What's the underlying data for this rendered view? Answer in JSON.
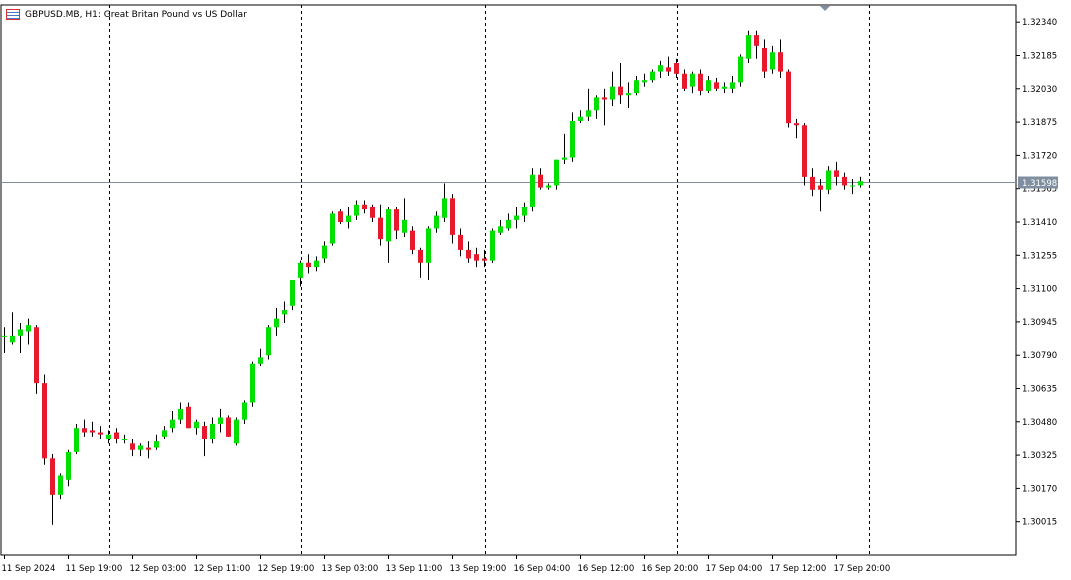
{
  "header": {
    "title": "GBPUSD.MB, H1:  Great Britan Pound vs US Dollar",
    "icon": "chart-window-icon"
  },
  "colors": {
    "background": "#ffffff",
    "frame": "#000000",
    "bull": "#00e000",
    "bear": "#e8192c",
    "wick": "#000000",
    "bid_line": "#7f8f9f",
    "price_badge": "#7f8f9f",
    "separator": "#000000"
  },
  "chart_data": {
    "type": "candlestick",
    "symbol": "GBPUSD.MB",
    "timeframe": "H1",
    "y_axis": {
      "range": [
        1.2986,
        1.3242
      ],
      "ticks": [
        "1.32340",
        "1.32185",
        "1.32030",
        "1.31875",
        "1.31720",
        "1.31565",
        "1.31410",
        "1.31255",
        "1.31100",
        "1.30945",
        "1.30790",
        "1.30635",
        "1.30480",
        "1.30325",
        "1.30170",
        "1.30015"
      ]
    },
    "current_price": "1.31598",
    "x_axis": {
      "labels": [
        "11 Sep 2024",
        "11 Sep 19:00",
        "12 Sep 03:00",
        "12 Sep 11:00",
        "12 Sep 19:00",
        "13 Sep 03:00",
        "13 Sep 11:00",
        "13 Sep 19:00",
        "16 Sep 04:00",
        "16 Sep 12:00",
        "16 Sep 20:00",
        "17 Sep 04:00",
        "17 Sep 12:00",
        "17 Sep 20:00"
      ],
      "label_every": 8
    },
    "period_separators_at_index": [
      13,
      37,
      60,
      84,
      108
    ],
    "grid": false,
    "candles": [
      {
        "o": 1.3088,
        "h": 1.3092,
        "l": 1.308,
        "c": 1.3088
      },
      {
        "o": 1.3085,
        "h": 1.3099,
        "l": 1.3084,
        "c": 1.3088
      },
      {
        "o": 1.3088,
        "h": 1.3094,
        "l": 1.308,
        "c": 1.3091
      },
      {
        "o": 1.309,
        "h": 1.3096,
        "l": 1.3084,
        "c": 1.3093
      },
      {
        "o": 1.3092,
        "h": 1.3093,
        "l": 1.3061,
        "c": 1.3066
      },
      {
        "o": 1.3066,
        "h": 1.307,
        "l": 1.3028,
        "c": 1.3031
      },
      {
        "o": 1.3031,
        "h": 1.3033,
        "l": 1.3,
        "c": 1.3014
      },
      {
        "o": 1.3014,
        "h": 1.3024,
        "l": 1.3012,
        "c": 1.3023
      },
      {
        "o": 1.3021,
        "h": 1.3035,
        "l": 1.3018,
        "c": 1.3034
      },
      {
        "o": 1.3034,
        "h": 1.3047,
        "l": 1.3033,
        "c": 1.3045
      },
      {
        "o": 1.3045,
        "h": 1.3049,
        "l": 1.3041,
        "c": 1.3043
      },
      {
        "o": 1.3044,
        "h": 1.3048,
        "l": 1.3041,
        "c": 1.3043
      },
      {
        "o": 1.3043,
        "h": 1.3046,
        "l": 1.304,
        "c": 1.3042
      },
      {
        "o": 1.304,
        "h": 1.3044,
        "l": 1.3038,
        "c": 1.3042
      },
      {
        "o": 1.3043,
        "h": 1.3045,
        "l": 1.3038,
        "c": 1.304
      },
      {
        "o": 1.304,
        "h": 1.3042,
        "l": 1.3038,
        "c": 1.304
      },
      {
        "o": 1.3038,
        "h": 1.304,
        "l": 1.3032,
        "c": 1.3035
      },
      {
        "o": 1.3035,
        "h": 1.3038,
        "l": 1.3032,
        "c": 1.3037
      },
      {
        "o": 1.3036,
        "h": 1.3039,
        "l": 1.3031,
        "c": 1.3035
      },
      {
        "o": 1.3036,
        "h": 1.3042,
        "l": 1.3035,
        "c": 1.3039
      },
      {
        "o": 1.3041,
        "h": 1.3046,
        "l": 1.304,
        "c": 1.3044
      },
      {
        "o": 1.3045,
        "h": 1.3053,
        "l": 1.3043,
        "c": 1.3049
      },
      {
        "o": 1.3049,
        "h": 1.3057,
        "l": 1.3047,
        "c": 1.3054
      },
      {
        "o": 1.3055,
        "h": 1.3057,
        "l": 1.3045,
        "c": 1.3045
      },
      {
        "o": 1.3045,
        "h": 1.3049,
        "l": 1.3042,
        "c": 1.3048
      },
      {
        "o": 1.3046,
        "h": 1.3048,
        "l": 1.3032,
        "c": 1.304
      },
      {
        "o": 1.304,
        "h": 1.305,
        "l": 1.3038,
        "c": 1.3047
      },
      {
        "o": 1.3047,
        "h": 1.3054,
        "l": 1.3043,
        "c": 1.305
      },
      {
        "o": 1.305,
        "h": 1.3051,
        "l": 1.3041,
        "c": 1.3041
      },
      {
        "o": 1.3038,
        "h": 1.305,
        "l": 1.3037,
        "c": 1.3049
      },
      {
        "o": 1.3049,
        "h": 1.3058,
        "l": 1.3047,
        "c": 1.3057
      },
      {
        "o": 1.3057,
        "h": 1.3076,
        "l": 1.3055,
        "c": 1.3075
      },
      {
        "o": 1.3075,
        "h": 1.3082,
        "l": 1.3074,
        "c": 1.3078
      },
      {
        "o": 1.3079,
        "h": 1.3093,
        "l": 1.3077,
        "c": 1.3092
      },
      {
        "o": 1.3092,
        "h": 1.3101,
        "l": 1.3088,
        "c": 1.3096
      },
      {
        "o": 1.3098,
        "h": 1.3104,
        "l": 1.3094,
        "c": 1.31
      },
      {
        "o": 1.3102,
        "h": 1.3114,
        "l": 1.31,
        "c": 1.3114
      },
      {
        "o": 1.3115,
        "h": 1.3123,
        "l": 1.3111,
        "c": 1.3122
      },
      {
        "o": 1.3122,
        "h": 1.3126,
        "l": 1.3117,
        "c": 1.312
      },
      {
        "o": 1.312,
        "h": 1.3125,
        "l": 1.3118,
        "c": 1.3123
      },
      {
        "o": 1.3124,
        "h": 1.3132,
        "l": 1.3122,
        "c": 1.313
      },
      {
        "o": 1.3131,
        "h": 1.3146,
        "l": 1.313,
        "c": 1.3145
      },
      {
        "o": 1.3146,
        "h": 1.3147,
        "l": 1.314,
        "c": 1.3141
      },
      {
        "o": 1.3141,
        "h": 1.3148,
        "l": 1.3138,
        "c": 1.3144
      },
      {
        "o": 1.3144,
        "h": 1.3151,
        "l": 1.3142,
        "c": 1.3149
      },
      {
        "o": 1.3149,
        "h": 1.3151,
        "l": 1.3145,
        "c": 1.3147
      },
      {
        "o": 1.3148,
        "h": 1.3149,
        "l": 1.3141,
        "c": 1.3143
      },
      {
        "o": 1.3143,
        "h": 1.3149,
        "l": 1.313,
        "c": 1.3133
      },
      {
        "o": 1.3132,
        "h": 1.3148,
        "l": 1.3122,
        "c": 1.3147
      },
      {
        "o": 1.3147,
        "h": 1.3148,
        "l": 1.3133,
        "c": 1.3137
      },
      {
        "o": 1.3136,
        "h": 1.3152,
        "l": 1.3134,
        "c": 1.3142
      },
      {
        "o": 1.3137,
        "h": 1.3139,
        "l": 1.3126,
        "c": 1.3128
      },
      {
        "o": 1.3128,
        "h": 1.3129,
        "l": 1.3115,
        "c": 1.3122
      },
      {
        "o": 1.3122,
        "h": 1.3139,
        "l": 1.3114,
        "c": 1.3138
      },
      {
        "o": 1.3138,
        "h": 1.3146,
        "l": 1.3136,
        "c": 1.3144
      },
      {
        "o": 1.3143,
        "h": 1.3159,
        "l": 1.3141,
        "c": 1.3152
      },
      {
        "o": 1.3152,
        "h": 1.3154,
        "l": 1.3131,
        "c": 1.3135
      },
      {
        "o": 1.3135,
        "h": 1.3138,
        "l": 1.3125,
        "c": 1.3128
      },
      {
        "o": 1.3128,
        "h": 1.3132,
        "l": 1.3122,
        "c": 1.3124
      },
      {
        "o": 1.3126,
        "h": 1.3129,
        "l": 1.312,
        "c": 1.3123
      },
      {
        "o": 1.3124,
        "h": 1.3128,
        "l": 1.312,
        "c": 1.3123
      },
      {
        "o": 1.3123,
        "h": 1.3138,
        "l": 1.3122,
        "c": 1.3137
      },
      {
        "o": 1.3136,
        "h": 1.3142,
        "l": 1.3135,
        "c": 1.3139
      },
      {
        "o": 1.3138,
        "h": 1.3145,
        "l": 1.3137,
        "c": 1.3142
      },
      {
        "o": 1.3142,
        "h": 1.3148,
        "l": 1.3138,
        "c": 1.3144
      },
      {
        "o": 1.3144,
        "h": 1.315,
        "l": 1.3141,
        "c": 1.3148
      },
      {
        "o": 1.3148,
        "h": 1.3166,
        "l": 1.3146,
        "c": 1.3163
      },
      {
        "o": 1.3163,
        "h": 1.3166,
        "l": 1.3156,
        "c": 1.3157
      },
      {
        "o": 1.3157,
        "h": 1.3159,
        "l": 1.3156,
        "c": 1.3158
      },
      {
        "o": 1.3158,
        "h": 1.317,
        "l": 1.3156,
        "c": 1.317
      },
      {
        "o": 1.317,
        "h": 1.3182,
        "l": 1.3168,
        "c": 1.3171
      },
      {
        "o": 1.3171,
        "h": 1.3192,
        "l": 1.3169,
        "c": 1.3188
      },
      {
        "o": 1.3188,
        "h": 1.3193,
        "l": 1.3187,
        "c": 1.319
      },
      {
        "o": 1.319,
        "h": 1.3203,
        "l": 1.3188,
        "c": 1.3193
      },
      {
        "o": 1.3193,
        "h": 1.32,
        "l": 1.3189,
        "c": 1.3199
      },
      {
        "o": 1.3199,
        "h": 1.3203,
        "l": 1.3186,
        "c": 1.3198
      },
      {
        "o": 1.3198,
        "h": 1.3211,
        "l": 1.3195,
        "c": 1.3204
      },
      {
        "o": 1.3204,
        "h": 1.3215,
        "l": 1.3196,
        "c": 1.32
      },
      {
        "o": 1.32,
        "h": 1.3206,
        "l": 1.3194,
        "c": 1.3201
      },
      {
        "o": 1.3201,
        "h": 1.3209,
        "l": 1.32,
        "c": 1.3207
      },
      {
        "o": 1.3206,
        "h": 1.321,
        "l": 1.3204,
        "c": 1.3207
      },
      {
        "o": 1.3207,
        "h": 1.3212,
        "l": 1.3206,
        "c": 1.3211
      },
      {
        "o": 1.3211,
        "h": 1.3216,
        "l": 1.3208,
        "c": 1.3214
      },
      {
        "o": 1.3213,
        "h": 1.3218,
        "l": 1.3209,
        "c": 1.3211
      },
      {
        "o": 1.3215,
        "h": 1.3217,
        "l": 1.3208,
        "c": 1.321
      },
      {
        "o": 1.321,
        "h": 1.3212,
        "l": 1.3202,
        "c": 1.3203
      },
      {
        "o": 1.3204,
        "h": 1.3211,
        "l": 1.3201,
        "c": 1.321
      },
      {
        "o": 1.321,
        "h": 1.3212,
        "l": 1.32,
        "c": 1.3202
      },
      {
        "o": 1.3202,
        "h": 1.3209,
        "l": 1.3201,
        "c": 1.3207
      },
      {
        "o": 1.3206,
        "h": 1.3208,
        "l": 1.3202,
        "c": 1.3203
      },
      {
        "o": 1.3203,
        "h": 1.3206,
        "l": 1.3201,
        "c": 1.3204
      },
      {
        "o": 1.3203,
        "h": 1.3209,
        "l": 1.3201,
        "c": 1.3206
      },
      {
        "o": 1.3206,
        "h": 1.3219,
        "l": 1.3204,
        "c": 1.3218
      },
      {
        "o": 1.3217,
        "h": 1.323,
        "l": 1.3215,
        "c": 1.3228
      },
      {
        "o": 1.3228,
        "h": 1.323,
        "l": 1.3217,
        "c": 1.3223
      },
      {
        "o": 1.3222,
        "h": 1.3226,
        "l": 1.3208,
        "c": 1.3211
      },
      {
        "o": 1.3212,
        "h": 1.3223,
        "l": 1.321,
        "c": 1.322
      },
      {
        "o": 1.322,
        "h": 1.3226,
        "l": 1.3208,
        "c": 1.3211
      },
      {
        "o": 1.3211,
        "h": 1.3212,
        "l": 1.3185,
        "c": 1.3187
      },
      {
        "o": 1.3187,
        "h": 1.3189,
        "l": 1.318,
        "c": 1.3186
      },
      {
        "o": 1.3186,
        "h": 1.3187,
        "l": 1.3158,
        "c": 1.3162
      },
      {
        "o": 1.3162,
        "h": 1.3166,
        "l": 1.3153,
        "c": 1.3156
      },
      {
        "o": 1.3158,
        "h": 1.3161,
        "l": 1.3146,
        "c": 1.3156
      },
      {
        "o": 1.3156,
        "h": 1.3167,
        "l": 1.3154,
        "c": 1.3165
      },
      {
        "o": 1.3165,
        "h": 1.3169,
        "l": 1.3158,
        "c": 1.3162
      },
      {
        "o": 1.3162,
        "h": 1.3164,
        "l": 1.3156,
        "c": 1.3158
      },
      {
        "o": 1.3158,
        "h": 1.3161,
        "l": 1.3154,
        "c": 1.3158
      },
      {
        "o": 1.3158,
        "h": 1.3162,
        "l": 1.3157,
        "c": 1.316
      }
    ]
  }
}
